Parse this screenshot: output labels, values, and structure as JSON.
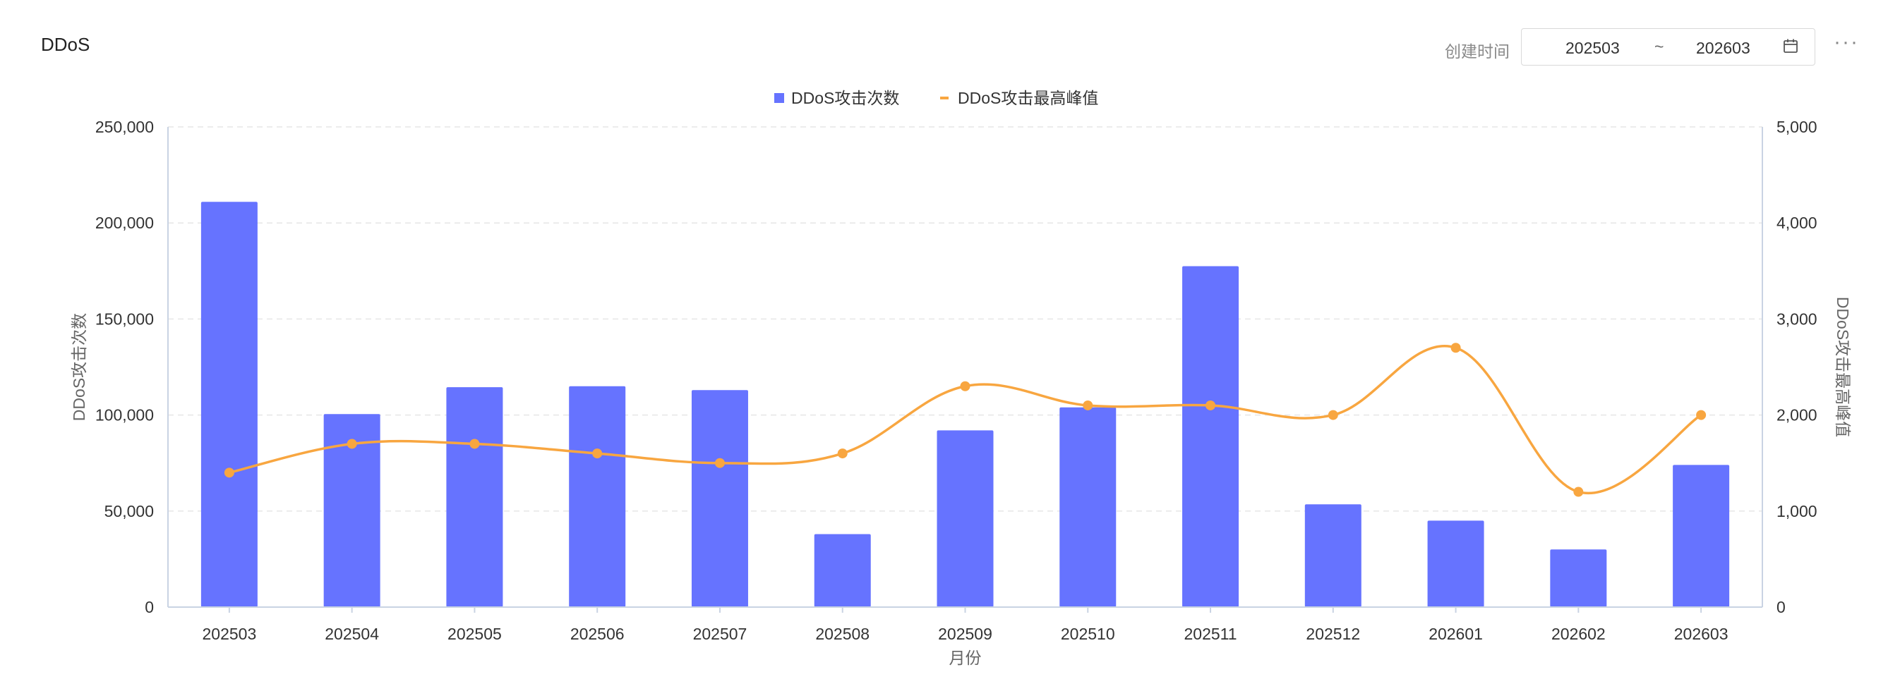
{
  "header": {
    "title": "DDoS",
    "date_label": "创建时间",
    "date_start": "202503",
    "date_separator": "~",
    "date_end": "202603",
    "calendar_icon": "calendar-icon",
    "more_icon": "more-horizontal-icon",
    "more_label": "···"
  },
  "chart_data": {
    "type": "bar",
    "categories": [
      "202503",
      "202504",
      "202505",
      "202506",
      "202507",
      "202508",
      "202509",
      "202510",
      "202511",
      "202512",
      "202601",
      "202602",
      "202603"
    ],
    "series": [
      {
        "name": "DDoS攻击次数",
        "type": "bar",
        "axis": "left",
        "color": "#6673ff",
        "values": [
          211000,
          100500,
          114500,
          115000,
          113000,
          38000,
          92000,
          104000,
          177500,
          53500,
          45000,
          30000,
          74000
        ]
      },
      {
        "name": "DDoS攻击最高峰值",
        "type": "line",
        "smooth": true,
        "axis": "right",
        "color": "#f8a640",
        "values": [
          1400,
          1700,
          1700,
          1600,
          1500,
          1600,
          2300,
          2100,
          2100,
          2000,
          2700,
          1200,
          2000
        ]
      }
    ],
    "xlabel": "月份",
    "ylabel_left": "DDoS攻击次数",
    "ylabel_right": "DDoS攻击最高峰值",
    "ylim_left": [
      0,
      250000
    ],
    "yticks_left": [
      "0",
      "50,000",
      "100,000",
      "150,000",
      "200,000",
      "250,000"
    ],
    "ylim_right": [
      0,
      5000
    ],
    "yticks_right": [
      "0",
      "1,000",
      "2,000",
      "3,000",
      "4,000",
      "5,000"
    ],
    "grid": true,
    "legend_position": "top-center"
  }
}
